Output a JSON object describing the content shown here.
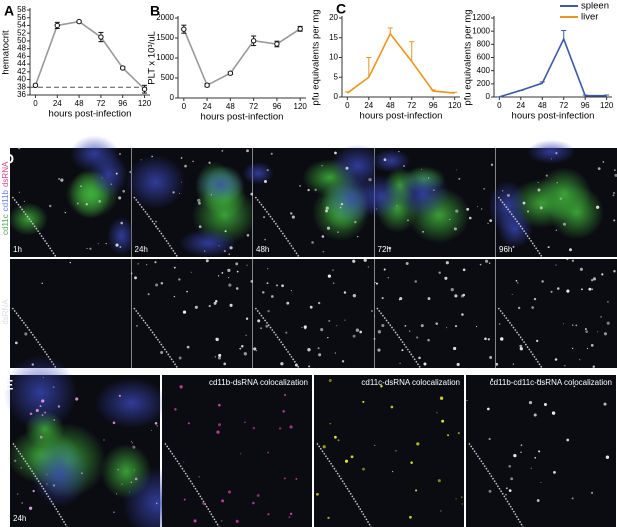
{
  "chart_data": [
    {
      "type": "line",
      "panel": "A",
      "y_label": "hematocrit",
      "x_label": "hours post-infection",
      "x": [
        0,
        24,
        48,
        72,
        96,
        120
      ],
      "xlim": [
        -6,
        126
      ],
      "xticks": [
        0,
        24,
        48,
        72,
        96,
        120
      ],
      "ylim": [
        36,
        58
      ],
      "yticks": [
        36,
        38,
        40,
        42,
        44,
        46,
        48,
        50,
        52,
        54,
        56,
        58
      ],
      "reference_line": 38,
      "markers": true,
      "error_style": "both",
      "series": [
        {
          "color": "#999999",
          "values": [
            38.5,
            54,
            55,
            51,
            43,
            37.5
          ],
          "errors": [
            0.3,
            0.8,
            0.3,
            1.2,
            0.3,
            1.0
          ]
        }
      ]
    },
    {
      "type": "line",
      "panel": "B",
      "y_label": "PLT x 10³/uL",
      "x_label": "hours post-infection",
      "x": [
        0,
        24,
        48,
        72,
        96,
        120
      ],
      "xlim": [
        -6,
        126
      ],
      "xticks": [
        0,
        24,
        48,
        72,
        96,
        120
      ],
      "ylim": [
        0,
        2000
      ],
      "yticks": [
        0,
        500,
        1000,
        1500,
        2000
      ],
      "markers": true,
      "error_style": "both",
      "series": [
        {
          "color": "#999999",
          "values": [
            1720,
            320,
            620,
            1430,
            1350,
            1730
          ],
          "errors": [
            100,
            40,
            30,
            120,
            70,
            60
          ]
        }
      ]
    },
    {
      "type": "line",
      "panel": "C",
      "y_label": "pfu equivalents per mg",
      "x_label": "hours post-infection",
      "x": [
        0,
        24,
        48,
        72,
        96,
        120
      ],
      "xlim": [
        -6,
        126
      ],
      "xticks": [
        0,
        24,
        48,
        72,
        96,
        120
      ],
      "ylim": [
        0,
        20
      ],
      "yticks": [
        0,
        5,
        10,
        15,
        20
      ],
      "markers": false,
      "error_style": "up",
      "series": [
        {
          "name": "liver",
          "color": "#e8961e",
          "values": [
            1,
            5,
            16,
            9,
            1.5,
            1
          ],
          "errors": [
            0.3,
            5,
            1.5,
            5,
            0.3,
            0.2
          ]
        }
      ]
    },
    {
      "type": "line",
      "y_label": "pfu equivalents per mg",
      "x_label": "hours post-infection",
      "x": [
        0,
        24,
        48,
        72,
        96,
        120
      ],
      "xlim": [
        -6,
        126
      ],
      "xticks": [
        0,
        24,
        48,
        72,
        96,
        120
      ],
      "ylim": [
        0,
        1200
      ],
      "yticks": [
        0,
        200,
        400,
        600,
        800,
        1000,
        1200
      ],
      "markers": false,
      "error_style": "up",
      "legend": "upper right",
      "series": [
        {
          "name": "spleen",
          "color": "#3c5aa8",
          "values": [
            2,
            100,
            210,
            880,
            20,
            20
          ],
          "errors": [
            0,
            0,
            20,
            130,
            10,
            10
          ]
        }
      ]
    }
  ],
  "panel_d": {
    "label": "D",
    "channel_labels": [
      "cd11c",
      "cd11b",
      "dsRNA"
    ],
    "row2_label": "dsRNA",
    "timepoints": [
      "1h",
      "24h",
      "48h",
      "72h",
      "96h"
    ]
  },
  "panel_e": {
    "label": "E",
    "time_label": "24h",
    "titles": [
      "cd11b-dsRNA colocalization",
      "cd11c-dsRNA colocalization",
      "cd11b-cd11c-dsRNA colocalization"
    ]
  }
}
